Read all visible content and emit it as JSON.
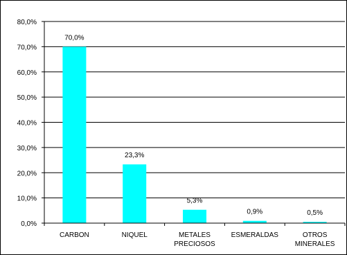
{
  "chart_data": {
    "type": "bar",
    "categories": [
      [
        "CARBON"
      ],
      [
        "NIQUEL"
      ],
      [
        "METALES",
        "PRECIOSOS"
      ],
      [
        "ESMERALDAS"
      ],
      [
        "OTROS",
        "MINERALES"
      ]
    ],
    "values": [
      70.0,
      23.3,
      5.3,
      0.9,
      0.5
    ],
    "data_labels": [
      "70,0%",
      "23,3%",
      "5,3%",
      "0,9%",
      "0,5%"
    ],
    "ylim": [
      0,
      80
    ],
    "yticks": [
      0,
      10,
      20,
      30,
      40,
      50,
      60,
      70,
      80
    ],
    "ytick_labels": [
      "0,0%",
      "10,0%",
      "20,0%",
      "30,0%",
      "40,0%",
      "50,0%",
      "60,0%",
      "70,0%",
      "80,0%"
    ],
    "grid": true,
    "legend": "none",
    "title": "",
    "xlabel": "",
    "ylabel": "",
    "colors": {
      "bar": "#00FFFF",
      "grid": "#000000",
      "background": "#FFFFFF"
    }
  }
}
